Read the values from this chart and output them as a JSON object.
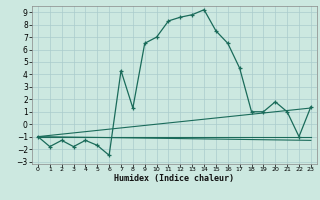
{
  "xlabel": "Humidex (Indice chaleur)",
  "bg_color": "#cce8e0",
  "grid_color": "#aacccc",
  "line_color": "#1a6b5a",
  "xlim": [
    -0.5,
    23.5
  ],
  "ylim": [
    -3.2,
    9.5
  ],
  "xticks": [
    0,
    1,
    2,
    3,
    4,
    5,
    6,
    7,
    8,
    9,
    10,
    11,
    12,
    13,
    14,
    15,
    16,
    17,
    18,
    19,
    20,
    21,
    22,
    23
  ],
  "yticks": [
    -3,
    -2,
    -1,
    0,
    1,
    2,
    3,
    4,
    5,
    6,
    7,
    8,
    9
  ],
  "series": [
    [
      0,
      -1.0
    ],
    [
      1,
      -1.8
    ],
    [
      2,
      -1.3
    ],
    [
      3,
      -1.8
    ],
    [
      4,
      -1.3
    ],
    [
      5,
      -1.7
    ],
    [
      6,
      -2.5
    ],
    [
      7,
      4.3
    ],
    [
      8,
      1.3
    ],
    [
      9,
      6.5
    ],
    [
      10,
      7.0
    ],
    [
      11,
      8.3
    ],
    [
      12,
      8.6
    ],
    [
      13,
      8.8
    ],
    [
      14,
      9.2
    ],
    [
      15,
      7.5
    ],
    [
      16,
      6.5
    ],
    [
      17,
      4.5
    ],
    [
      18,
      1.0
    ],
    [
      19,
      1.0
    ],
    [
      20,
      1.8
    ],
    [
      21,
      1.0
    ],
    [
      22,
      -1.0
    ],
    [
      23,
      1.4
    ]
  ],
  "flat_line1": [
    [
      0,
      -1.0
    ],
    [
      23,
      -1.0
    ]
  ],
  "flat_line2": [
    [
      0,
      -1.0
    ],
    [
      23,
      -1.3
    ]
  ],
  "rising_line": [
    [
      0,
      -1.0
    ],
    [
      23,
      1.3
    ]
  ]
}
